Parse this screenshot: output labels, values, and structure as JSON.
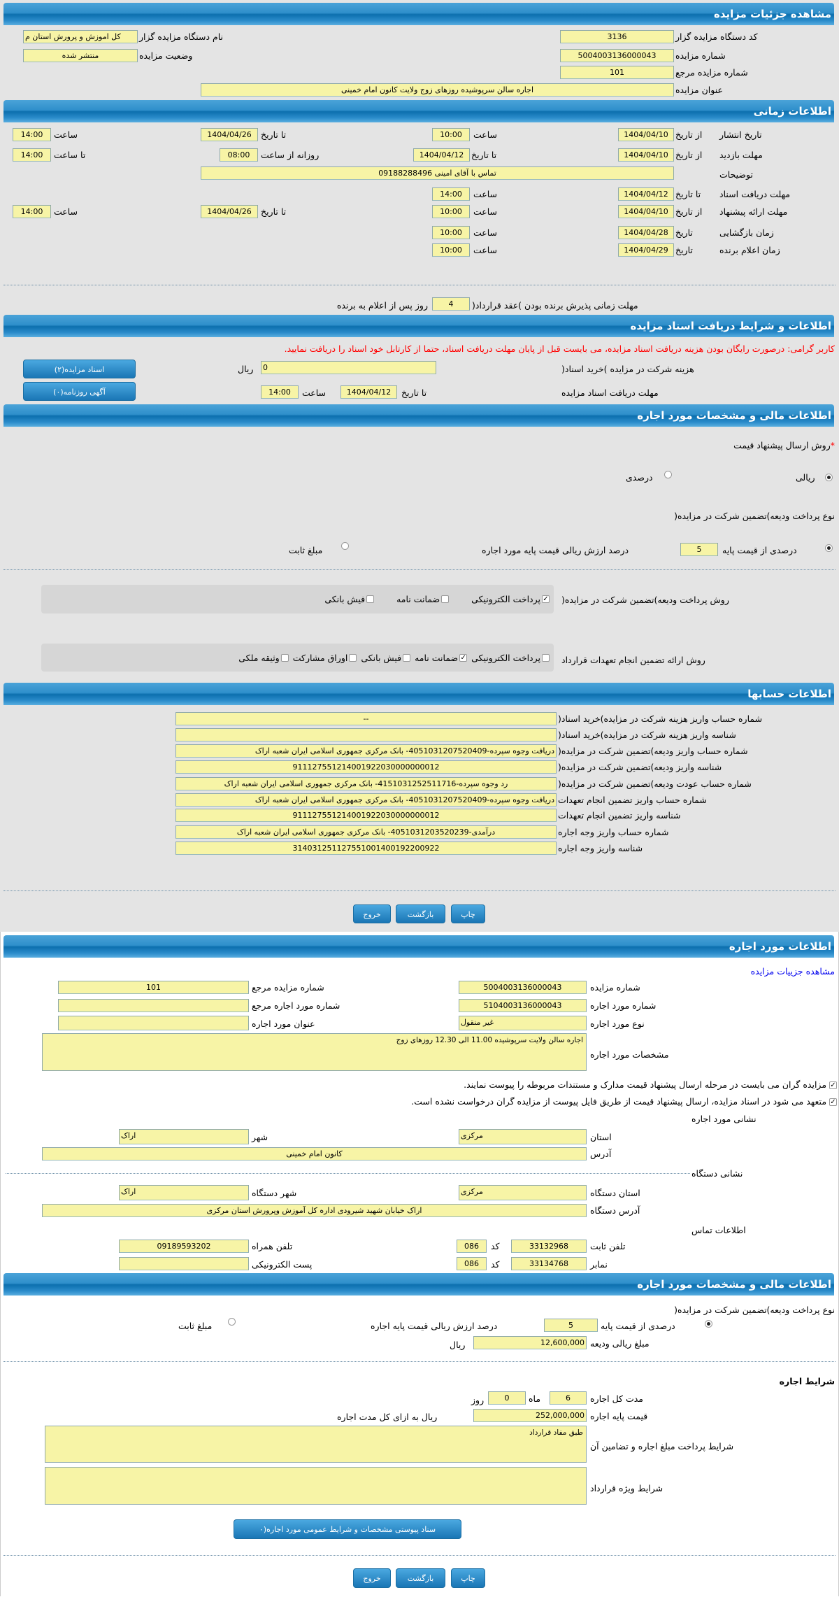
{
  "sections": {
    "auction_details": "مشاهده جزئیات مزایده",
    "timing": "اطلاعات زمانی",
    "documents": "اطلاعات و شرایط دریافت اسناد مزایده",
    "financial": "اطلاعات مالی و مشخصات مورد اجاره",
    "accounts": "اطلاعات حسابها",
    "lease_item": "اطلاعات مورد اجاره",
    "lease_financial": "اطلاعات مالی و مشخصات مورد اجاره"
  },
  "details": {
    "org_code_label": "کد دستگاه مزایده گزار",
    "org_code": "3136",
    "org_name_label": "نام دستگاه مزایده گزار",
    "org_name": "کل اموزش و پرورش استان م",
    "auction_no_label": "شماره مزایده",
    "auction_no": "5004003136000043",
    "status_label": "وضعیت مزایده",
    "status": "منتشر شده",
    "ref_no_label": "شماره مزایده مرجع",
    "ref_no": "101",
    "title_label": "عنوان مزایده",
    "title": "اجاره  سالن سرپوشیده روزهای زوج ولایت کانون امام خمینی"
  },
  "common": {
    "from_date": "از تاریخ",
    "to_date": "تا تاریخ",
    "time": "ساعت",
    "to_time": "تا ساعت",
    "daily_from_time": "روزانه از ساعت",
    "date": "تاریخ",
    "rial": "ریال"
  },
  "timing": {
    "publish": {
      "label": "تاریخ انتشار",
      "from": "1404/04/10",
      "from_time": "10:00",
      "to": "1404/04/26",
      "to_time": "14:00"
    },
    "visit": {
      "label": "مهلت بازدید",
      "from": "1404/04/10",
      "to": "1404/04/12",
      "daily_from": "08:00",
      "to_time": "14:00"
    },
    "notes": {
      "label": "توضیحات",
      "value": "تماس با آقای امینی 09188288496"
    },
    "docs_deadline": {
      "label": "مهلت دریافت اسناد",
      "to": "1404/04/12",
      "time": "14:00"
    },
    "proposal": {
      "label": "مهلت ارائه پیشنهاد",
      "from": "1404/04/10",
      "from_time": "10:00",
      "to": "1404/04/26",
      "to_time": "14:00"
    },
    "opening": {
      "label": "زمان بازگشایی",
      "date": "1404/04/28",
      "time": "10:00"
    },
    "winner": {
      "label": "زمان اعلام برنده",
      "date": "1404/04/29",
      "time": "10:00"
    },
    "contract": {
      "label": "مهلت زمانی پذیرش برنده بودن )عقد قرارداد(",
      "days": "4",
      "suffix": "روز پس از اعلام به برنده"
    }
  },
  "documents": {
    "notice": "کاربر گرامی: درصورت رایگان بودن هزینه دریافت اسناد مزایده، می بایست قبل از پایان مهلت دریافت اسناد، حتما از کارتابل خود اسناد را دریافت نمایید.",
    "fee_label": "هزینه شرکت در مزایده )خرید اسناد(",
    "fee": "0",
    "deadline_label": "مهلت دریافت اسناد مزایده",
    "deadline_date": "1404/04/12",
    "deadline_time": "14:00",
    "docs_button": "اسناد مزایده(۲)",
    "ads_button": "آگهی روزنامه(۰)"
  },
  "financial": {
    "price_method_label": "روش ارسال پیشنهاد قیمت",
    "required_mark": "*",
    "rial_option": "ریالی",
    "percent_option": "درصدی",
    "deposit_type_label": "نوع پرداخت ودیعه)تضمین شرکت در مزایده(",
    "percent_of_base": "درصدی از قیمت پایه",
    "percent_value": "5",
    "percent_suffix": "درصد ارزش ریالی قیمت پایه مورد اجاره",
    "fixed_amount": "مبلغ ثابت",
    "deposit_method_label": "روش پرداخت ودیعه)تضمین شرکت در مزایده(",
    "deposit_methods": [
      {
        "label": "پرداخت الکترونیکی",
        "checked": true
      },
      {
        "label": "ضمانت نامه",
        "checked": false
      },
      {
        "label": "فیش بانکی",
        "checked": false
      }
    ],
    "guarantee_method_label": "روش ارائه تضمین انجام تعهدات قرارداد",
    "guarantee_methods": [
      {
        "label": "پرداخت الکترونیکی",
        "checked": false
      },
      {
        "label": "ضمانت نامه",
        "checked": true
      },
      {
        "label": "فیش بانکی",
        "checked": false
      },
      {
        "label": "اوراق مشارکت",
        "checked": false
      },
      {
        "label": "وثیقه ملکی",
        "checked": false
      }
    ]
  },
  "accounts": [
    {
      "label": "شماره حساب واریز هزینه شرکت در مزایده)خرید اسناد(",
      "value": "--"
    },
    {
      "label": "شناسه واریز هزینه شرکت در مزایده)خرید اسناد(",
      "value": ""
    },
    {
      "label": "شماره حساب واریز ودیعه)تضمین شرکت در مزایده(",
      "value": "دریافت وجوه سپرده-4051031207520409- بانک مرکزی جمهوری اسلامی ایران شعبه اراک"
    },
    {
      "label": "شناسه واریز ودیعه)تضمین شرکت در مزایده(",
      "value": "911127551214001922030000000012"
    },
    {
      "label": "شماره حساب عودت ودیعه)تضمین شرکت در مزایده(",
      "value": "رد وجوه سپرده-4151031252511716- بانک مرکزی جمهوری اسلامی ایران شعبه اراک"
    },
    {
      "label": "شماره حساب واریز تضمین انجام تعهدات",
      "value": "دریافت وجوه سپرده-4051031207520409- بانک مرکزی جمهوری اسلامی ایران شعبه اراک"
    },
    {
      "label": "شناسه واریز تضمین انجام تعهدات",
      "value": "911127551214001922030000000012"
    },
    {
      "label": "شماره حساب واریز وجه اجاره",
      "value": "درآمدی-4051031203520239- بانک مرکزی جمهوری اسلامی ایران شعبه اراک"
    },
    {
      "label": "شناسه واریز وجه اجاره",
      "value": "314031251127551001400192200922"
    }
  ],
  "buttons": {
    "print": "چاپ",
    "back": "بازگشت",
    "exit": "خروج"
  },
  "lease": {
    "link": "مشاهده جزییات مزایده",
    "auction_no_label": "شماره مزایده",
    "auction_no": "5004003136000043",
    "ref_no_label": "شماره مزایده مرجع",
    "ref_no": "101",
    "item_no_label": "شماره مورد اجاره",
    "item_no": "5104003136000043",
    "item_ref_label": "شماره مورد اجاره مرجع",
    "item_ref": "",
    "type_label": "نوع مورد اجاره",
    "type": "غیر منقول",
    "item_title_label": "عنوان مورد اجاره",
    "item_title": "",
    "spec_label": "مشخصات مورد اجاره",
    "spec": "اجاره سالن ولایت سرپوشیده 11.00 الی 12.30 روزهای زوج",
    "check1": "مزایده گران می بایست در مرحله ارسال پیشنهاد قیمت مدارک و مستندات مربوطه را پیوست نمایند.",
    "check2": "متعهد می شود در اسناد مزایده، ارسال پیشنهاد قیمت از طریق فایل پیوست از مزایده گران درخواست نشده است.",
    "address_title": "نشانی مورد اجاره",
    "province_label": "استان",
    "province": "مرکزی",
    "city_label": "شهر",
    "city": "اراک",
    "address_label": "آدرس",
    "address": "کانون امام خمینی",
    "org_address_title": "نشانی دستگاه",
    "org_province_label": "استان دستگاه",
    "org_province": "مرکزی",
    "org_city_label": "شهر دستگاه",
    "org_city": "اراک",
    "org_address_label": "آدرس دستگاه",
    "org_address": "اراک خیابان شهید شیرودی اداره کل آموزش وپرورش استان مرکزی",
    "contact_title": "اطلاعات تماس",
    "phone_label": "تلفن ثابت",
    "phone": "33132968",
    "code_label": "کد",
    "phone_code": "086",
    "mobile_label": "تلفن همراه",
    "mobile": "09189593202",
    "fax_label": "نمابر",
    "fax": "33134768",
    "fax_code": "086",
    "email_label": "پست الکترونیکی",
    "email": ""
  },
  "lease_financial": {
    "deposit_type_label": "نوع پرداخت ودیعه)تضمین شرکت در مزایده(",
    "percent_of_base": "درصدی از قیمت پایه",
    "percent_value": "5",
    "percent_suffix": "درصد ارزش ریالی قیمت پایه اجاره",
    "fixed_amount": "مبلغ ثابت",
    "deposit_amount_label": "مبلغ ریالی ودیعه",
    "deposit_amount": "12,600,000",
    "terms_title": "شرایط اجاره",
    "duration_label": "مدت کل اجاره",
    "months": "6",
    "month_label": "ماه",
    "days": "0",
    "day_label": "روز",
    "base_price_label": "قیمت پایه اجاره",
    "base_price": "252,000,000",
    "base_price_suffix": "ریال به ازای کل مدت اجاره",
    "payment_terms_label": "شرایط پرداخت مبلغ اجاره و تضامین آن",
    "payment_terms": "طبق مفاد قرارداد",
    "special_terms_label": "شرایط ویژه قرارداد",
    "special_terms": "",
    "attachments_button": "سناد پیوستی مشخصات و شرایط عمومی مورد اجاره(۰"
  }
}
